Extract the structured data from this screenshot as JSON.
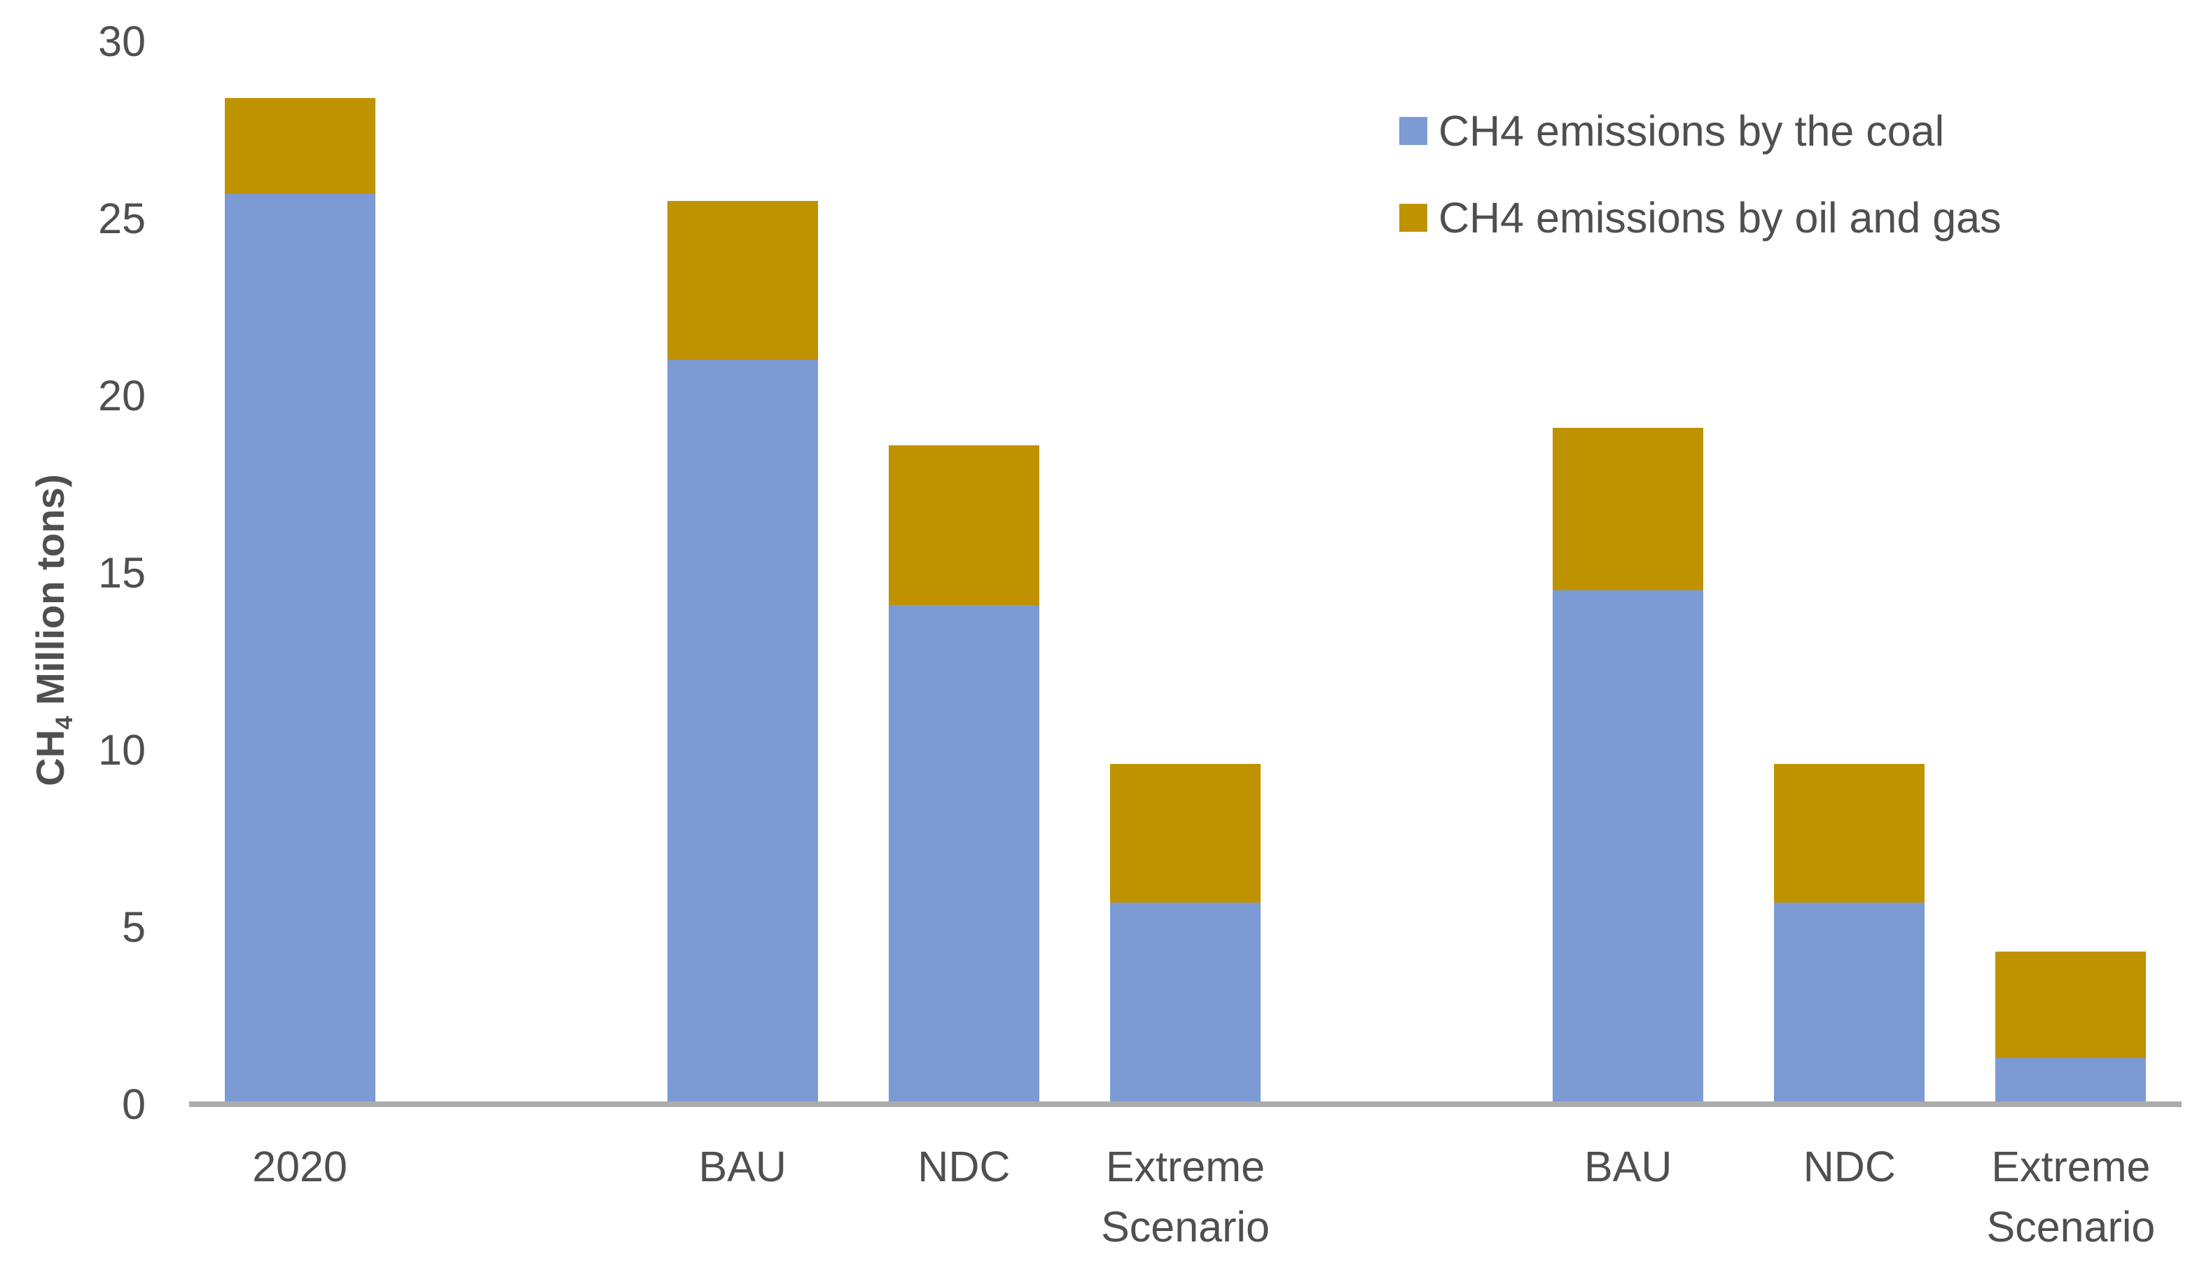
{
  "chart_data": {
    "type": "bar",
    "stacked": true,
    "title": "",
    "ylabel": "CH4 Million tons)",
    "xlabel": "",
    "categories": [
      "2020",
      "",
      "BAU",
      "NDC",
      "Extreme Scenario",
      "",
      "BAU",
      "NDC",
      "Extreme Scenario"
    ],
    "series": [
      {
        "id": "coal",
        "name": "CH4 emissions by the coal",
        "color": "#7C9BD5",
        "values": [
          25.7,
          0,
          21.0,
          14.1,
          5.7,
          0,
          14.5,
          5.7,
          1.3
        ]
      },
      {
        "id": "oil-gas",
        "name": "CH4 emissions by oil and gas",
        "color": "#BF9200",
        "values": [
          2.7,
          0,
          4.5,
          4.5,
          3.9,
          0,
          4.6,
          3.9,
          3.0
        ]
      }
    ],
    "stacked_totals": [
      28.4,
      0,
      25.5,
      18.6,
      9.6,
      0,
      19.1,
      9.6,
      4.3
    ],
    "ylim": [
      0,
      30
    ],
    "yticks": [
      0,
      5,
      10,
      15,
      20,
      25,
      30
    ],
    "grid": false,
    "legend_position": "top-right"
  },
  "axes": {
    "y_title_prefix": "CH",
    "y_title_sub": "4",
    "y_title_suffix": " Million tons)",
    "baseline_color": "#acacac",
    "text_color": "#4f4f4f"
  }
}
